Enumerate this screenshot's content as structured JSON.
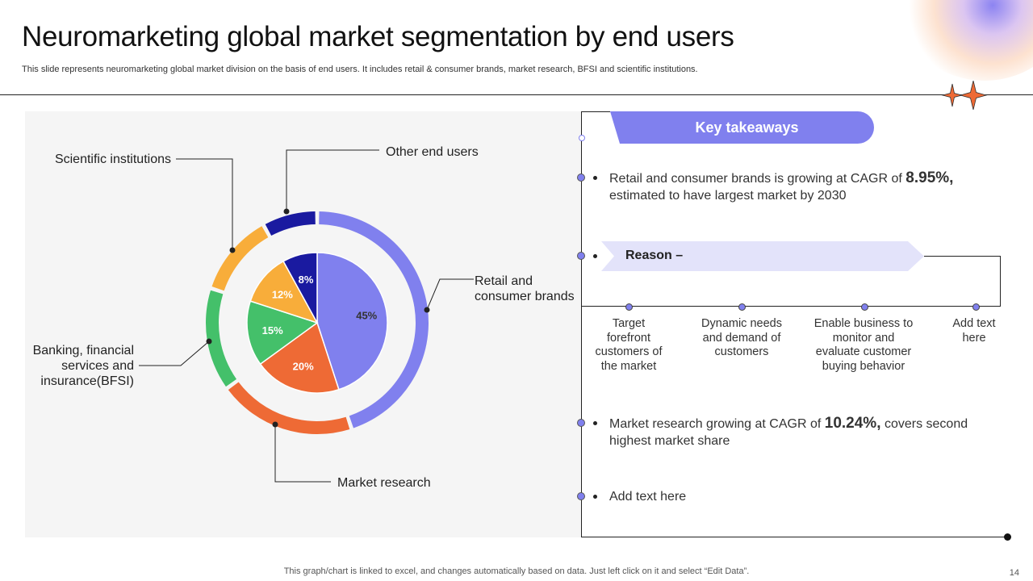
{
  "slide": {
    "title": "Neuromarketing global market segmentation by end users",
    "subtitle": "This slide represents neuromarketing global market division on the basis of end users. It includes retail & consumer brands, market research, BFSI and scientific institutions.",
    "footer": "This graph/chart is linked to excel,  and changes automatically based on data. Just left click on it and select “Edit Data”.",
    "page_number": "14"
  },
  "chart_data": {
    "type": "pie",
    "categories": [
      "Retail and consumer brands",
      "Market research",
      "Banking, financial services and insurance(BFSI)",
      "Scientific institutions",
      "Other end users"
    ],
    "values": [
      45,
      20,
      15,
      12,
      8
    ],
    "value_labels": [
      "45%",
      "20%",
      "15%",
      "12%",
      "8%"
    ],
    "colors": [
      "#8080ee",
      "#ee6a35",
      "#44c06a",
      "#f8ad3a",
      "#1a1aa0"
    ],
    "callouts": {
      "retail": "Retail and consumer brands",
      "market_research": "Market research",
      "bfsi": "Banking, financial services and insurance(BFSI)",
      "scientific": "Scientific institutions",
      "other": "Other end users"
    }
  },
  "takeaways": {
    "header": "Key takeaways",
    "item1_pre": "Retail and consumer brands is growing at CAGR of ",
    "item1_highlight": "8.95%,",
    "item1_post": "estimated to have largest market by 2030",
    "reason_label": "Reason –",
    "reasons": [
      "Target forefront customers of the market",
      "Dynamic needs and demand of customers",
      "Enable business to monitor and evaluate customer buying behavior",
      "Add text here"
    ],
    "item2_pre": "Market research growing at CAGR of ",
    "item2_highlight": "10.24%,",
    "item2_post": " covers second highest market share",
    "item3": "Add text here"
  },
  "colors": {
    "accent": "#8080ee",
    "reason_bg": "#e3e3fa",
    "panel_bg": "#f5f5f5",
    "star": "#ee6a35"
  }
}
